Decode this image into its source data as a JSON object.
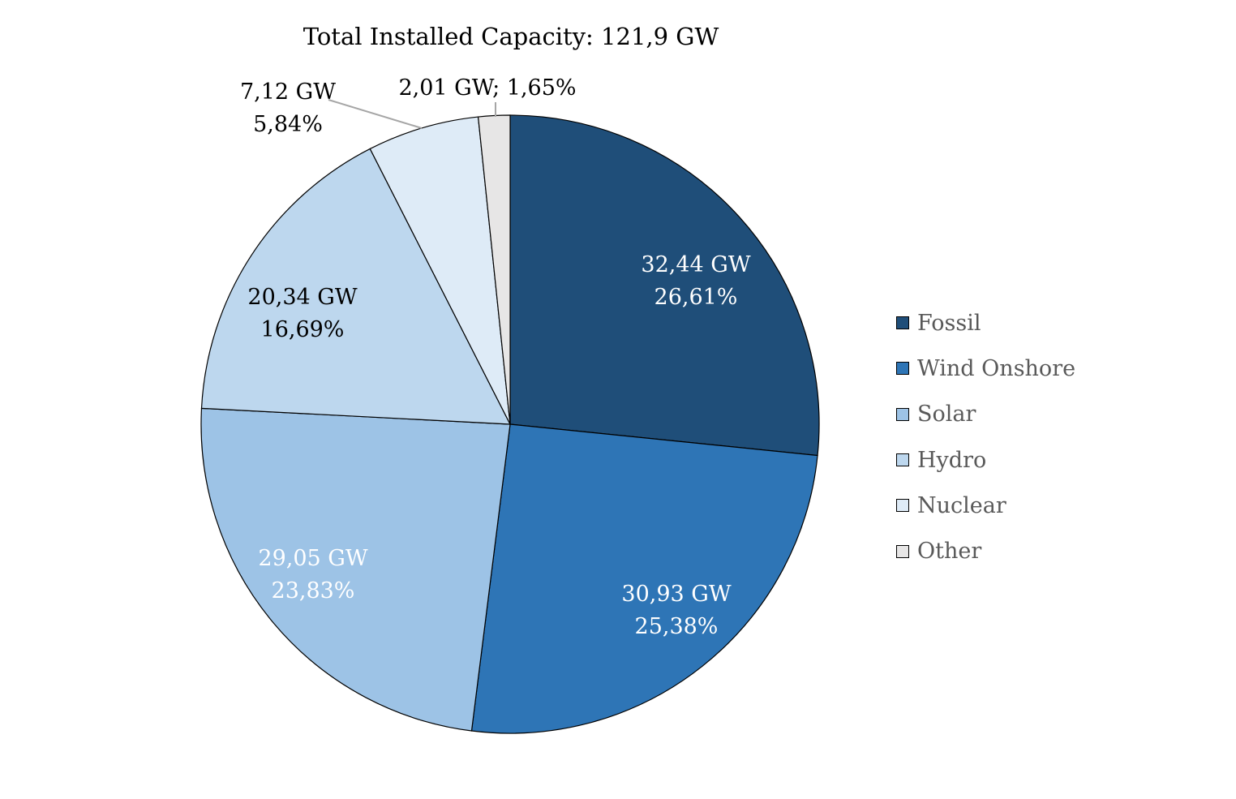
{
  "chart_data": {
    "type": "pie",
    "title": "Total Installed Capacity: 121,9 GW",
    "legend_position": "right",
    "start_angle": "top, clockwise",
    "slices": [
      {
        "name": "Fossil",
        "value_gw": 32.44,
        "percent": 26.61,
        "label_line1": "32,44 GW",
        "label_line2": "26,61%",
        "color": "#1F4E79",
        "label_color": "#FFFFFF"
      },
      {
        "name": "Wind Onshore",
        "value_gw": 30.93,
        "percent": 25.38,
        "label_line1": "30,93 GW",
        "label_line2": "25,38%",
        "color": "#2E75B6",
        "label_color": "#FFFFFF"
      },
      {
        "name": "Solar",
        "value_gw": 29.05,
        "percent": 23.83,
        "label_line1": "29,05 GW",
        "label_line2": "23,83%",
        "color": "#9DC3E6",
        "label_color": "#FFFFFF"
      },
      {
        "name": "Hydro",
        "value_gw": 20.34,
        "percent": 16.69,
        "label_line1": "20,34 GW",
        "label_line2": "16,69%",
        "color": "#BDD7EE",
        "label_color": "#000000"
      },
      {
        "name": "Nuclear",
        "value_gw": 7.12,
        "percent": 5.84,
        "label_line1": "7,12 GW",
        "label_line2": "5,84%",
        "color": "#DEEBF7",
        "label_color": "#000000"
      },
      {
        "name": "Other",
        "value_gw": 2.01,
        "percent": 1.65,
        "label_line1": "2,01 GW; 1,65%",
        "label_line2": "",
        "color": "#E7E6E6",
        "label_color": "#000000"
      }
    ]
  }
}
